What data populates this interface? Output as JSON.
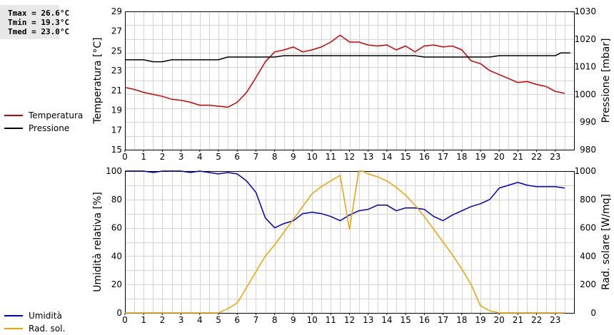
{
  "stats": {
    "tmax": "Tmax = 26.6°C",
    "tmin": "Tmin = 19.3°C",
    "tmed": "Tmed = 23.0°C"
  },
  "colors": {
    "temperature": "#d40000",
    "pressure": "#000000",
    "humidity": "#0000c8",
    "solar": "#f2a200",
    "grid": "#d4d4d4"
  },
  "chart_data": [
    {
      "type": "line",
      "x_ticks": [
        "0",
        "1",
        "2",
        "3",
        "4",
        "5",
        "6",
        "7",
        "8",
        "9",
        "10",
        "11",
        "12",
        "13",
        "14",
        "15",
        "16",
        "17",
        "18",
        "19",
        "20",
        "21",
        "22",
        "23"
      ],
      "xlim": [
        0,
        24
      ],
      "ylabel": "Temperatura [°C]",
      "ylim": [
        15,
        29
      ],
      "y_ticks": [
        "15",
        "17",
        "19",
        "21",
        "23",
        "25",
        "27",
        "29"
      ],
      "y2label": "Pressione [mbar]",
      "y2lim": [
        980,
        1030
      ],
      "y2_ticks": [
        "980",
        "990",
        "1000",
        "1010",
        "1020",
        "1030"
      ],
      "grid": true,
      "legend_position": "left",
      "series": [
        {
          "name": "Temperatura",
          "axis": "left",
          "x": [
            0,
            0.5,
            1,
            1.5,
            2,
            2.5,
            3,
            3.5,
            4,
            4.5,
            5,
            5.5,
            6,
            6.5,
            7,
            7.5,
            8,
            8.5,
            9,
            9.5,
            10,
            10.5,
            11,
            11.5,
            12,
            12.5,
            13,
            13.5,
            14,
            14.5,
            15,
            15.5,
            16,
            16.5,
            17,
            17.5,
            18,
            18.5,
            19,
            19.5,
            20,
            20.5,
            21,
            21.5,
            22,
            22.5,
            23,
            23.5
          ],
          "values": [
            21.3,
            21.1,
            20.8,
            20.6,
            20.4,
            20.1,
            20.0,
            19.8,
            19.5,
            19.5,
            19.4,
            19.3,
            19.8,
            20.8,
            22.3,
            23.9,
            24.9,
            25.1,
            25.4,
            24.9,
            25.1,
            25.4,
            25.9,
            26.6,
            25.9,
            25.9,
            25.6,
            25.5,
            25.6,
            25.1,
            25.5,
            24.9,
            25.5,
            25.6,
            25.4,
            25.5,
            25.1,
            24.0,
            23.7,
            23.0,
            22.6,
            22.2,
            21.8,
            21.9,
            21.6,
            21.4,
            20.9,
            20.7
          ]
        },
        {
          "name": "Pressione",
          "axis": "right",
          "x": [
            0,
            1,
            1.5,
            2,
            2.5,
            3,
            5,
            5.5,
            8,
            8.5,
            9,
            13,
            14,
            15,
            15.5,
            16,
            17,
            17.5,
            18,
            18.5,
            19.5,
            20,
            20.5,
            23,
            23.3,
            23.8
          ],
          "values": [
            1012.5,
            1012.5,
            1011.8,
            1011.8,
            1012.5,
            1012.5,
            1012.5,
            1013.5,
            1013.5,
            1014,
            1014,
            1014,
            1014,
            1014,
            1014,
            1013.5,
            1013.5,
            1013.5,
            1013.5,
            1013.5,
            1013.5,
            1014,
            1014,
            1014,
            1015,
            1015
          ]
        }
      ]
    },
    {
      "type": "line",
      "x_ticks": [
        "0",
        "1",
        "2",
        "3",
        "4",
        "5",
        "6",
        "7",
        "8",
        "9",
        "10",
        "11",
        "12",
        "13",
        "14",
        "15",
        "16",
        "17",
        "18",
        "19",
        "20",
        "21",
        "22",
        "23"
      ],
      "xlim": [
        0,
        24
      ],
      "ylabel": "Umidità relativa [%]",
      "ylim": [
        0,
        100
      ],
      "y_ticks": [
        "0",
        "20",
        "40",
        "60",
        "80",
        "100"
      ],
      "y2label": "Rad. solare [W/mq]",
      "y2lim": [
        0,
        1000
      ],
      "y2_ticks": [
        "0",
        "200",
        "400",
        "600",
        "800",
        "1000"
      ],
      "grid": true,
      "legend_position": "left",
      "series": [
        {
          "name": "Umidità",
          "axis": "left",
          "x": [
            0,
            0.5,
            1,
            1.5,
            2,
            2.5,
            3,
            3.5,
            4,
            4.5,
            5,
            5.5,
            6,
            6.5,
            7,
            7.5,
            8,
            8.5,
            9,
            9.5,
            10,
            10.5,
            11,
            11.5,
            12,
            12.5,
            13,
            13.5,
            14,
            14.5,
            15,
            15.5,
            16,
            16.5,
            17,
            17.5,
            18,
            18.5,
            19,
            19.5,
            20,
            20.5,
            21,
            21.5,
            22,
            22.5,
            23,
            23.5
          ],
          "values": [
            100,
            100,
            100,
            99,
            100,
            100,
            100,
            99,
            100,
            99,
            98,
            99,
            98,
            93,
            85,
            67,
            60,
            63,
            65,
            70,
            71,
            70,
            68,
            65,
            69,
            72,
            73,
            76,
            76,
            72,
            74,
            74,
            73,
            68,
            65,
            69,
            72,
            75,
            77,
            80,
            88,
            90,
            92,
            90,
            89,
            89,
            89,
            88
          ]
        },
        {
          "name": "Rad. sol.",
          "axis": "right",
          "x": [
            0,
            1,
            2,
            3,
            4,
            5,
            5.5,
            6,
            6.5,
            7,
            7.5,
            8,
            8.5,
            9,
            9.5,
            10,
            10.5,
            11,
            11.5,
            12,
            12.5,
            12.7,
            13,
            13.5,
            14,
            14.5,
            15,
            15.5,
            16,
            16.5,
            17,
            17.5,
            18,
            18.5,
            19,
            19.5,
            20,
            21,
            22,
            23,
            23.5
          ],
          "values": [
            0,
            0,
            0,
            0,
            0,
            0,
            30,
            70,
            180,
            290,
            400,
            480,
            570,
            660,
            750,
            840,
            890,
            930,
            970,
            590,
            1010,
            1010,
            980,
            960,
            930,
            885,
            830,
            760,
            680,
            590,
            500,
            410,
            310,
            200,
            50,
            15,
            0,
            0,
            0,
            0,
            0
          ]
        }
      ]
    }
  ]
}
